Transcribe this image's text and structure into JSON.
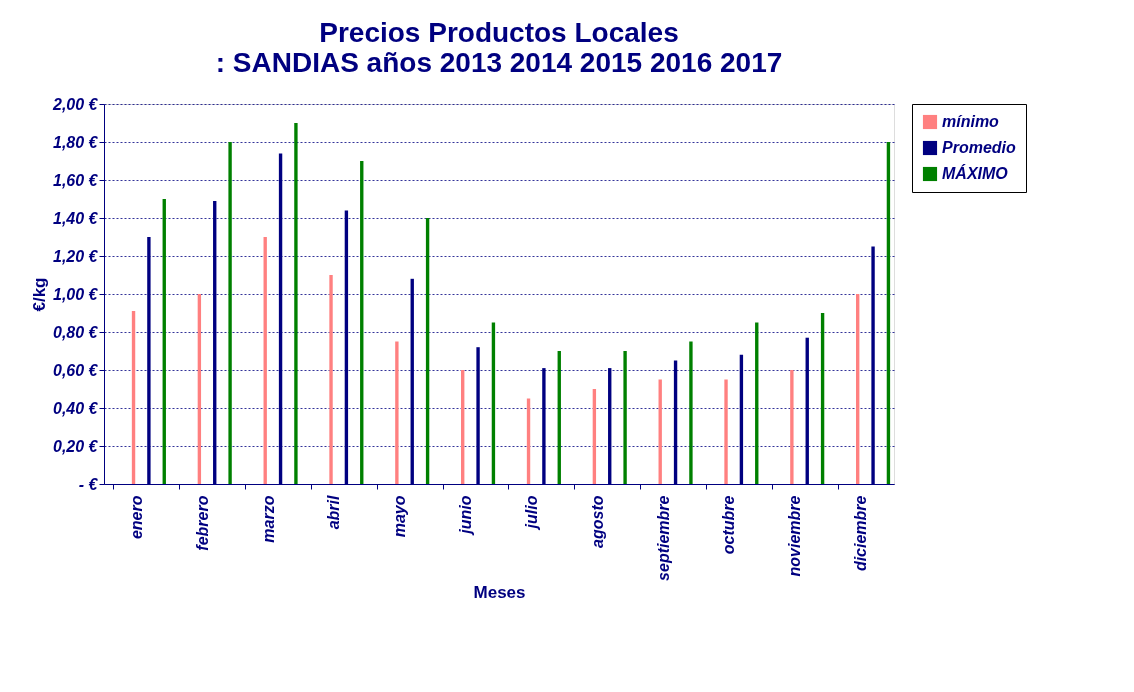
{
  "chart_data": {
    "type": "bar",
    "title": [
      "Precios Productos Locales",
      ":   SANDIAS años  2013 2014 2015 2016 2017"
    ],
    "xlabel": "Meses",
    "ylabel": "€/kg",
    "categories": [
      "enero",
      "febrero",
      "marzo",
      "abril",
      "mayo",
      "junio",
      "julio",
      "agosto",
      "septiembre",
      "octubre",
      "noviembre",
      "diciembre"
    ],
    "series": [
      {
        "name": "mínimo",
        "color": "#ff8080",
        "values": [
          0.91,
          1.0,
          1.3,
          1.1,
          0.75,
          0.6,
          0.45,
          0.5,
          0.55,
          0.55,
          0.6,
          1.0
        ]
      },
      {
        "name": "Promedio",
        "color": "#000080",
        "values": [
          1.3,
          1.49,
          1.74,
          1.44,
          1.08,
          0.72,
          0.61,
          0.61,
          0.65,
          0.68,
          0.77,
          1.25
        ]
      },
      {
        "name": "MÁXIMO",
        "color": "#008000",
        "values": [
          1.5,
          1.8,
          1.9,
          1.7,
          1.4,
          0.85,
          0.7,
          0.7,
          0.75,
          0.85,
          0.9,
          1.8
        ]
      }
    ],
    "ylim": [
      0,
      2
    ],
    "yticks": [
      {
        "value": 0,
        "label": "-   €"
      },
      {
        "value": 0.2,
        "label": "0,20 €"
      },
      {
        "value": 0.4,
        "label": "0,40 €"
      },
      {
        "value": 0.6,
        "label": "0,60 €"
      },
      {
        "value": 0.8,
        "label": "0,80 €"
      },
      {
        "value": 1.0,
        "label": "1,00 €"
      },
      {
        "value": 1.2,
        "label": "1,20 €"
      },
      {
        "value": 1.4,
        "label": "1,40 €"
      },
      {
        "value": 1.6,
        "label": "1,60 €"
      },
      {
        "value": 1.8,
        "label": "1,80 €"
      },
      {
        "value": 2.0,
        "label": "2,00 €"
      }
    ],
    "grid": "y",
    "legend": "right"
  }
}
